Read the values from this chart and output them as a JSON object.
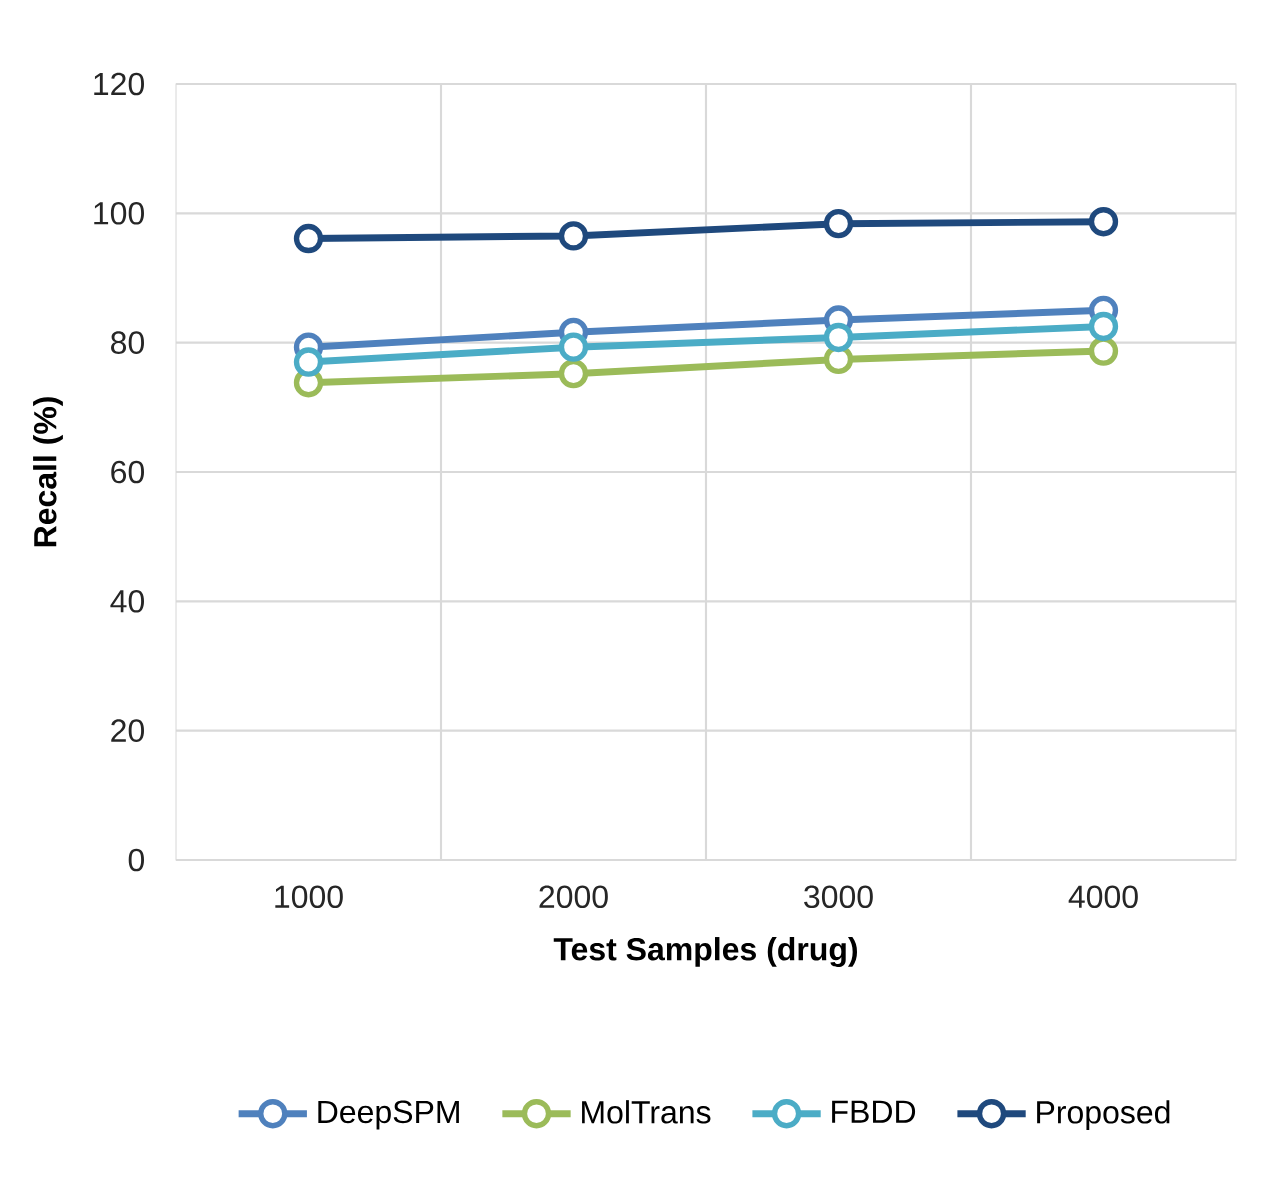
{
  "chart_data": {
    "type": "line",
    "xlabel": "Test Samples (drug)",
    "ylabel": "Recall (%)",
    "categories": [
      "1000",
      "2000",
      "3000",
      "4000"
    ],
    "series": [
      {
        "name": "DeepSPM",
        "color": "#4f81bd",
        "values": [
          79.3,
          81.6,
          83.5,
          85
        ]
      },
      {
        "name": "MolTrans",
        "color": "#9bbb59",
        "values": [
          73.8,
          75.2,
          77.4,
          78.7
        ]
      },
      {
        "name": "FBDD",
        "color": "#4bacc6",
        "values": [
          77,
          79.3,
          80.8,
          82.5
        ]
      },
      {
        "name": "Proposed",
        "color": "#1f497d",
        "values": [
          96.1,
          96.5,
          98.4,
          98.7
        ]
      }
    ],
    "ylim": [
      0,
      120
    ],
    "yticks": [
      0,
      20,
      40,
      60,
      80,
      100,
      120
    ],
    "grid": true,
    "legend": "bottom",
    "marker": "circle",
    "line_style": "solid"
  }
}
